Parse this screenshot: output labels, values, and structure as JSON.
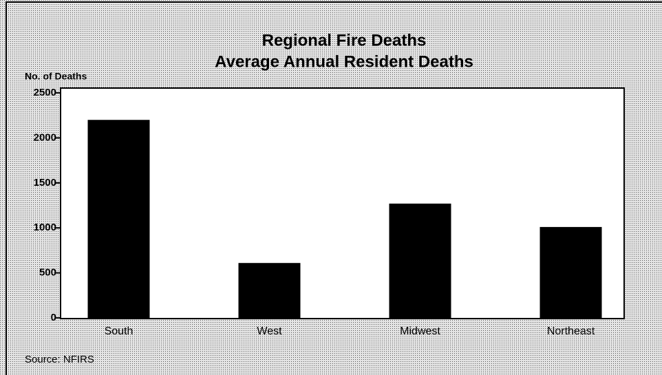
{
  "chart_data": {
    "type": "bar",
    "title": "Regional Fire Deaths",
    "subtitle": "Average Annual Resident Deaths",
    "y_axis_label": "No. of Deaths",
    "annotation": "Source: NFIRS",
    "categories": [
      "South",
      "West",
      "Midwest",
      "Northeast"
    ],
    "values": [
      2200,
      610,
      1270,
      1010
    ],
    "color": "#000000",
    "ylim": [
      0,
      2500
    ],
    "yticks": [
      0,
      500,
      1000,
      1500,
      2000,
      2500
    ],
    "grid": false
  }
}
